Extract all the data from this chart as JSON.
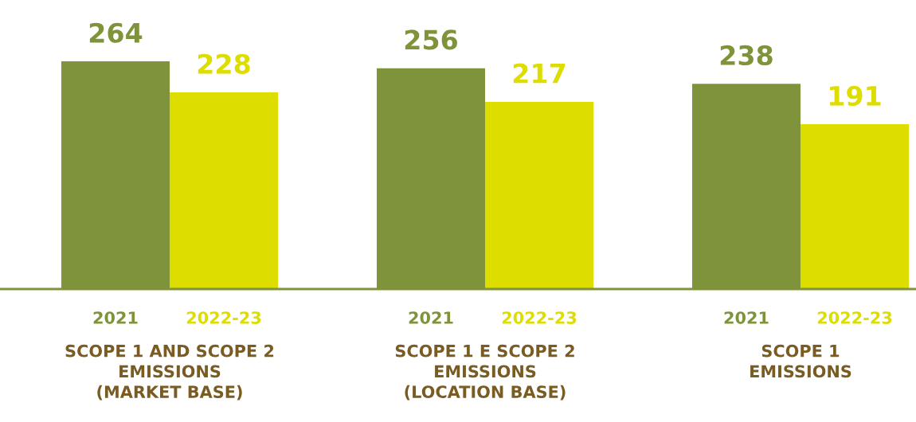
{
  "chart_data": {
    "type": "bar",
    "categories": [
      "SCOPE 1 AND SCOPE 2\nEMISSIONS\n(MARKET BASE)",
      "SCOPE 1 E SCOPE 2\nEMISSIONS\n(LOCATION BASE)",
      "SCOPE 1\nEMISSIONS"
    ],
    "series": [
      {
        "name": "2021",
        "color": "#7f933a",
        "values": [
          264,
          256,
          238
        ]
      },
      {
        "name": "2022-23",
        "color": "#dddd00",
        "values": [
          228,
          217,
          191
        ]
      }
    ],
    "data_labels": true
  }
}
